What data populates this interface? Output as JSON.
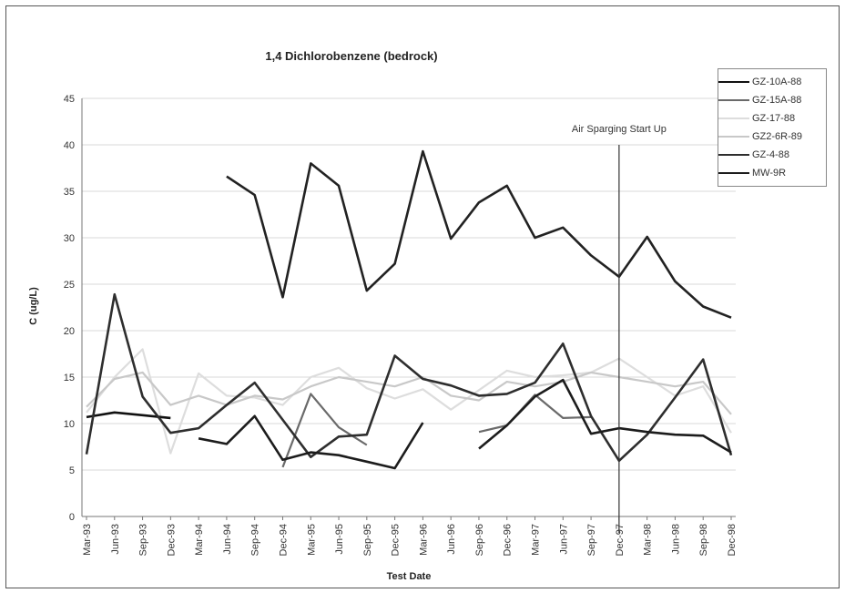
{
  "chart_data": {
    "type": "line",
    "title": "1,4 Dichlorobenzene (bedrock)",
    "xlabel": "Test Date",
    "ylabel": "C (ug/L)",
    "ylim": [
      0,
      45
    ],
    "yticks": [
      0,
      5,
      10,
      15,
      20,
      25,
      30,
      35,
      40,
      45
    ],
    "grid": true,
    "legend": "right",
    "categories": [
      "Mar-93",
      "Jun-93",
      "Sep-93",
      "Dec-93",
      "Mar-94",
      "Jun-94",
      "Sep-94",
      "Dec-94",
      "Mar-95",
      "Jun-95",
      "Sep-95",
      "Dec-95",
      "Mar-96",
      "Jun-96",
      "Sep-96",
      "Dec-96",
      "Mar-97",
      "Jun-97",
      "Sep-97",
      "Dec-97",
      "Mar-98",
      "Jun-98",
      "Sep-98",
      "Dec-98"
    ],
    "annotation": {
      "text": "Air Sparging Start Up",
      "at": "Dec-97"
    },
    "series": [
      {
        "name": "GZ-10A-88",
        "color": "#111111",
        "width": 2.6,
        "values": [
          10.7,
          11.2,
          10.9,
          10.6,
          null,
          null,
          null,
          null,
          null,
          null,
          null,
          null,
          null,
          null,
          null,
          null,
          null,
          null,
          null,
          null,
          null,
          null,
          null,
          null
        ]
      },
      {
        "name": "GZ-15A-88",
        "color": "#6a6a6a",
        "width": 2.2,
        "values": [
          null,
          null,
          null,
          null,
          null,
          null,
          null,
          5.3,
          13.2,
          9.6,
          7.7,
          null,
          null,
          null,
          9.1,
          9.8,
          13.1,
          10.6,
          10.7,
          null,
          null,
          null,
          null,
          null
        ]
      },
      {
        "name": "GZ-17-88",
        "color": "#dddddd",
        "width": 2.2,
        "values": [
          11.2,
          15.0,
          18.0,
          6.8,
          15.4,
          13.0,
          12.8,
          12.0,
          15.0,
          16.0,
          13.8,
          12.7,
          13.7,
          11.5,
          13.6,
          15.7,
          15.0,
          15.2,
          15.5,
          17.0,
          15.0,
          13.0,
          14.0,
          9.0
        ]
      },
      {
        "name": "GZ2-6R-89",
        "color": "#c8c8c8",
        "width": 2.2,
        "values": [
          11.8,
          14.8,
          15.5,
          12.0,
          13.0,
          12.0,
          13.0,
          12.6,
          14.0,
          15.0,
          14.5,
          14.0,
          15.0,
          13.0,
          12.5,
          14.5,
          14.0,
          14.5,
          15.5,
          15.0,
          14.5,
          14.0,
          14.5,
          11.0
        ]
      },
      {
        "name": "GZ-4-88",
        "color": "#2e2e2e",
        "width": 2.6,
        "values": [
          6.7,
          23.9,
          12.9,
          9.0,
          9.5,
          12.0,
          14.4,
          10.4,
          6.4,
          8.6,
          8.8,
          17.3,
          14.8,
          14.1,
          13.0,
          13.2,
          14.4,
          18.6,
          10.8,
          6.0,
          8.8,
          12.8,
          16.9,
          6.6
        ]
      },
      {
        "name": "MW-9R",
        "color": "#1c1c1c",
        "width": 2.6,
        "values": [
          null,
          null,
          null,
          null,
          8.4,
          7.8,
          10.8,
          6.1,
          6.9,
          6.6,
          5.9,
          5.2,
          10.1,
          null,
          7.3,
          9.8,
          12.9,
          14.7,
          8.9,
          9.5,
          9.1,
          8.8,
          8.7,
          6.9
        ]
      },
      {
        "name": "",
        "color": "#222222",
        "width": 2.6,
        "values": [
          null,
          null,
          null,
          null,
          null,
          36.6,
          34.6,
          23.6,
          38.0,
          35.6,
          24.3,
          27.2,
          39.3,
          29.9,
          33.8,
          35.6,
          30.0,
          31.1,
          28.1,
          25.8,
          30.1,
          25.3,
          22.6,
          21.4
        ]
      }
    ]
  }
}
